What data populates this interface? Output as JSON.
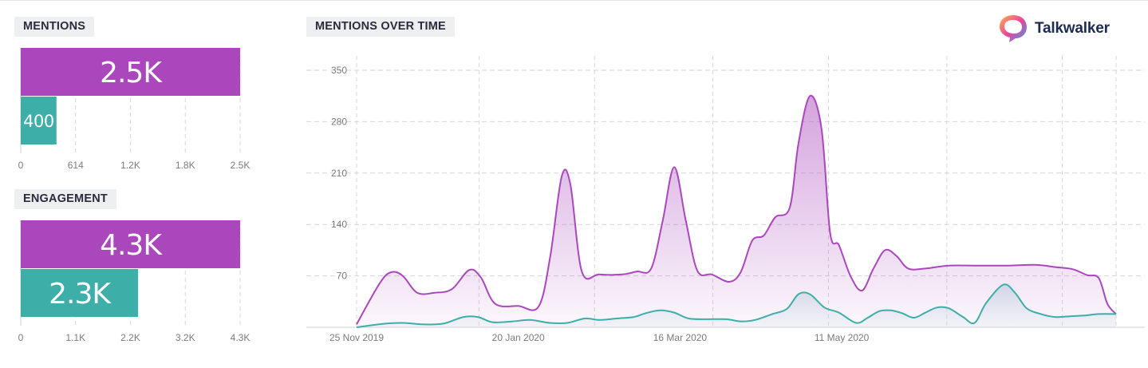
{
  "brand": {
    "name": "Talkwalker"
  },
  "colors": {
    "primary": "#aa47bc",
    "secondary": "#3daea8",
    "grid": "#d6d6d6",
    "tick": "#7a7a7a"
  },
  "chart_data": [
    {
      "id": "mentions",
      "type": "bar",
      "title": "MENTIONS",
      "orientation": "horizontal",
      "values": [
        2500,
        400
      ],
      "value_labels": [
        "2.5K",
        "400"
      ],
      "xlim": [
        0,
        2456
      ],
      "xticks": [
        "0",
        "614",
        "1.2K",
        "1.8K",
        "2.5K"
      ],
      "grid": true
    },
    {
      "id": "engagement",
      "type": "bar",
      "title": "ENGAGEMENT",
      "orientation": "horizontal",
      "values": [
        4300,
        2300
      ],
      "value_labels": [
        "4.3K",
        "2.3K"
      ],
      "xlim": [
        0,
        4300
      ],
      "xticks": [
        "0",
        "1.1K",
        "2.2K",
        "3.2K",
        "4.3K"
      ],
      "grid": true
    },
    {
      "id": "mentions_over_time",
      "type": "area",
      "title": "MENTIONS OVER TIME",
      "ylim": [
        0,
        350
      ],
      "yticks": [
        "350",
        "280",
        "210",
        "140",
        "70"
      ],
      "xticks": [
        "25 Nov 2019",
        "20 Jan 2020",
        "16 Mar 2020",
        "11 May 2020"
      ],
      "grid": true,
      "series": [
        {
          "values": [
            [
              0,
              4
            ],
            [
              8,
              60
            ],
            [
              12,
              75
            ],
            [
              16,
              70
            ],
            [
              21,
              47
            ],
            [
              27,
              47
            ],
            [
              33,
              52
            ],
            [
              39,
              78
            ],
            [
              43,
              68
            ],
            [
              48,
              32
            ],
            [
              56,
              29
            ],
            [
              63,
              28
            ],
            [
              67,
              95
            ],
            [
              71,
              205
            ],
            [
              74,
              195
            ],
            [
              78,
              76
            ],
            [
              84,
              72
            ],
            [
              92,
              72
            ],
            [
              97,
              76
            ],
            [
              102,
              80
            ],
            [
              106,
              145
            ],
            [
              110,
              218
            ],
            [
              114,
              145
            ],
            [
              118,
              77
            ],
            [
              123,
              72
            ],
            [
              129,
              62
            ],
            [
              133,
              75
            ],
            [
              137,
              118
            ],
            [
              141,
              125
            ],
            [
              145,
              150
            ],
            [
              150,
              163
            ],
            [
              153,
              250
            ],
            [
              157,
              315
            ],
            [
              161,
              270
            ],
            [
              164,
              128
            ],
            [
              167,
              112
            ],
            [
              171,
              70
            ],
            [
              175,
              50
            ],
            [
              179,
              80
            ],
            [
              183,
              105
            ],
            [
              187,
              97
            ],
            [
              191,
              80
            ],
            [
              197,
              80
            ],
            [
              205,
              84
            ],
            [
              215,
              84
            ],
            [
              225,
              84
            ],
            [
              235,
              85
            ],
            [
              242,
              82
            ],
            [
              248,
              79
            ],
            [
              253,
              71
            ],
            [
              257,
              67
            ],
            [
              260,
              32
            ],
            [
              263,
              18
            ]
          ]
        },
        {
          "values": [
            [
              0,
              0
            ],
            [
              10,
              5
            ],
            [
              16,
              6
            ],
            [
              23,
              4
            ],
            [
              30,
              5
            ],
            [
              37,
              14
            ],
            [
              42,
              14
            ],
            [
              47,
              7
            ],
            [
              54,
              8
            ],
            [
              60,
              10
            ],
            [
              67,
              6
            ],
            [
              73,
              6
            ],
            [
              79,
              12
            ],
            [
              84,
              10
            ],
            [
              90,
              12
            ],
            [
              96,
              14
            ],
            [
              100,
              19
            ],
            [
              105,
              23
            ],
            [
              110,
              20
            ],
            [
              115,
              12
            ],
            [
              121,
              11
            ],
            [
              128,
              11
            ],
            [
              133,
              8
            ],
            [
              138,
              10
            ],
            [
              144,
              18
            ],
            [
              149,
              25
            ],
            [
              153,
              45
            ],
            [
              157,
              45
            ],
            [
              162,
              27
            ],
            [
              167,
              20
            ],
            [
              173,
              6
            ],
            [
              177,
              13
            ],
            [
              181,
              22
            ],
            [
              185,
              23
            ],
            [
              189,
              19
            ],
            [
              193,
              13
            ],
            [
              197,
              20
            ],
            [
              201,
              27
            ],
            [
              205,
              26
            ],
            [
              210,
              14
            ],
            [
              214,
              6
            ],
            [
              218,
              33
            ],
            [
              224,
              58
            ],
            [
              228,
              47
            ],
            [
              232,
              26
            ],
            [
              237,
              18
            ],
            [
              242,
              14
            ],
            [
              247,
              15
            ],
            [
              252,
              16
            ],
            [
              257,
              18
            ],
            [
              263,
              18
            ]
          ]
        }
      ]
    }
  ]
}
